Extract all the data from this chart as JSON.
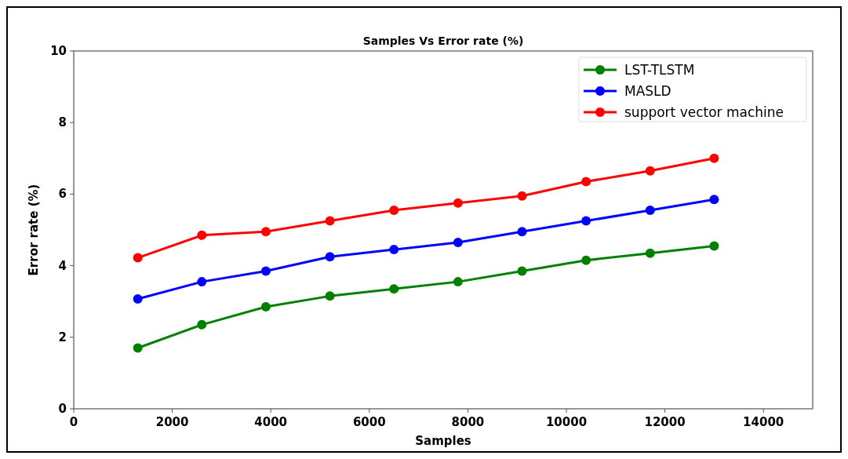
{
  "chart_data": {
    "type": "line",
    "title": "Samples  Vs Error rate (%)",
    "xlabel": "Samples",
    "ylabel": "Error rate (%)",
    "x": [
      1300,
      2600,
      3900,
      5200,
      6500,
      7800,
      9100,
      10400,
      11700,
      13000
    ],
    "series": [
      {
        "name": "LST-TLSTM",
        "color": "#008000",
        "values": [
          1.7,
          2.35,
          2.85,
          3.15,
          3.35,
          3.55,
          3.85,
          4.15,
          4.35,
          4.55
        ]
      },
      {
        "name": "MASLD",
        "color": "#0000ff",
        "values": [
          3.07,
          3.55,
          3.85,
          4.25,
          4.45,
          4.65,
          4.95,
          5.25,
          5.55,
          5.85
        ]
      },
      {
        "name": "support vector machine",
        "color": "#ff0000",
        "values": [
          4.22,
          4.85,
          4.95,
          5.25,
          5.55,
          5.75,
          5.95,
          6.35,
          6.65,
          7.0
        ]
      }
    ],
    "xlim": [
      0,
      15000
    ],
    "xticks": [
      0,
      2000,
      4000,
      6000,
      8000,
      10000,
      12000,
      14000
    ],
    "ylim": [
      0,
      10
    ],
    "yticks": [
      0,
      2,
      4,
      6,
      8,
      10
    ],
    "grid": false,
    "legend": "top right",
    "marker": "circle",
    "line_style": "solid"
  }
}
